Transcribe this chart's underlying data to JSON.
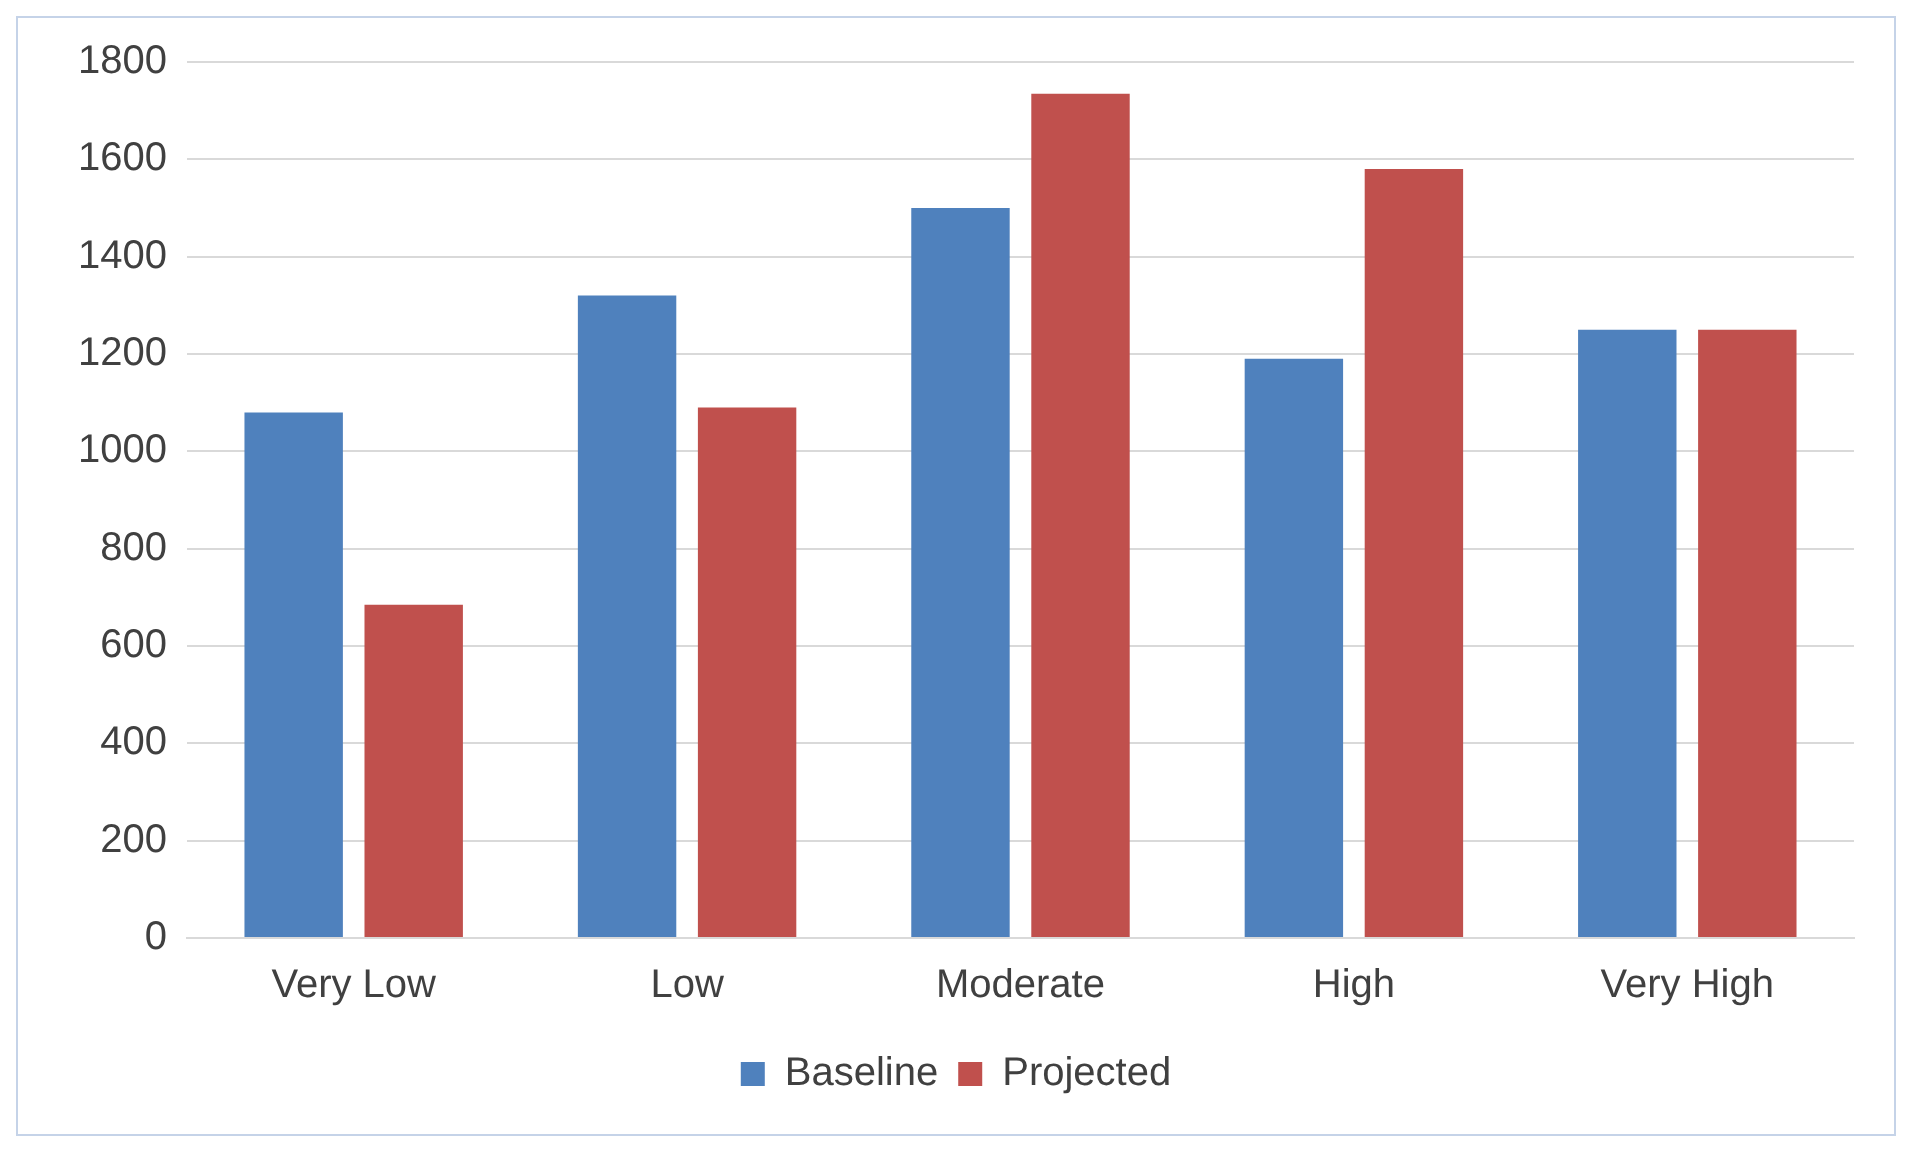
{
  "chart_data": {
    "type": "bar",
    "categories": [
      "Very Low",
      "Low",
      "Moderate",
      "High",
      "Very High"
    ],
    "series": [
      {
        "name": "Baseline",
        "color": "#4f81bd",
        "values": [
          1080,
          1320,
          1500,
          1190,
          1250
        ]
      },
      {
        "name": "Projected",
        "color": "#c0504d",
        "values": [
          685,
          1090,
          1735,
          1580,
          1250
        ]
      }
    ],
    "ylim": [
      0,
      1800
    ],
    "yticks": [
      0,
      200,
      400,
      600,
      800,
      1000,
      1200,
      1400,
      1600,
      1800
    ],
    "grid": "y",
    "legend": "bottom"
  }
}
